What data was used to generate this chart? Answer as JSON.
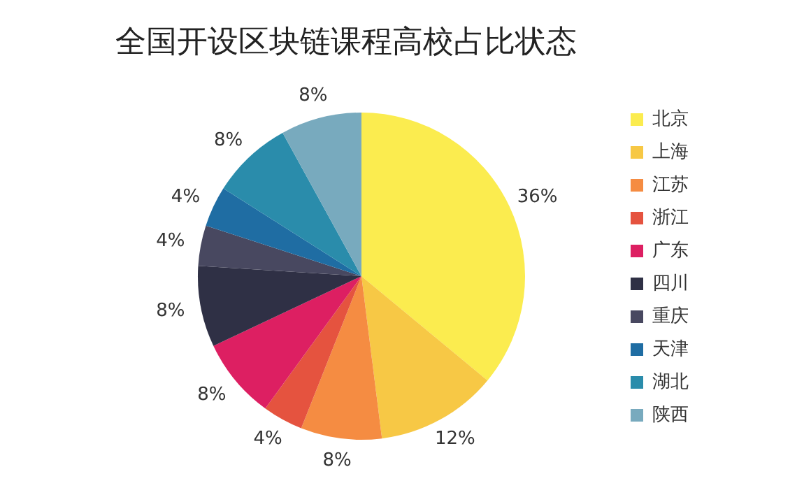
{
  "chart_data": {
    "type": "pie",
    "title": "全国开设区块链课程高校占比状态",
    "categories": [
      "北京",
      "上海",
      "江苏",
      "浙江",
      "广东",
      "四川",
      "重庆",
      "天津",
      "湖北",
      "陕西"
    ],
    "values": [
      36,
      12,
      8,
      4,
      8,
      8,
      4,
      4,
      8,
      8
    ],
    "colors": [
      "#fbec4f",
      "#f7c845",
      "#f58c42",
      "#e5533f",
      "#dd1f62",
      "#2f3045",
      "#484860",
      "#1f6da3",
      "#2a8cab",
      "#78aabe"
    ],
    "value_labels": [
      "36%",
      "12%",
      "8%",
      "4%",
      "8%",
      "8%",
      "4%",
      "4%",
      "8%",
      "8%"
    ],
    "legend": "right"
  }
}
